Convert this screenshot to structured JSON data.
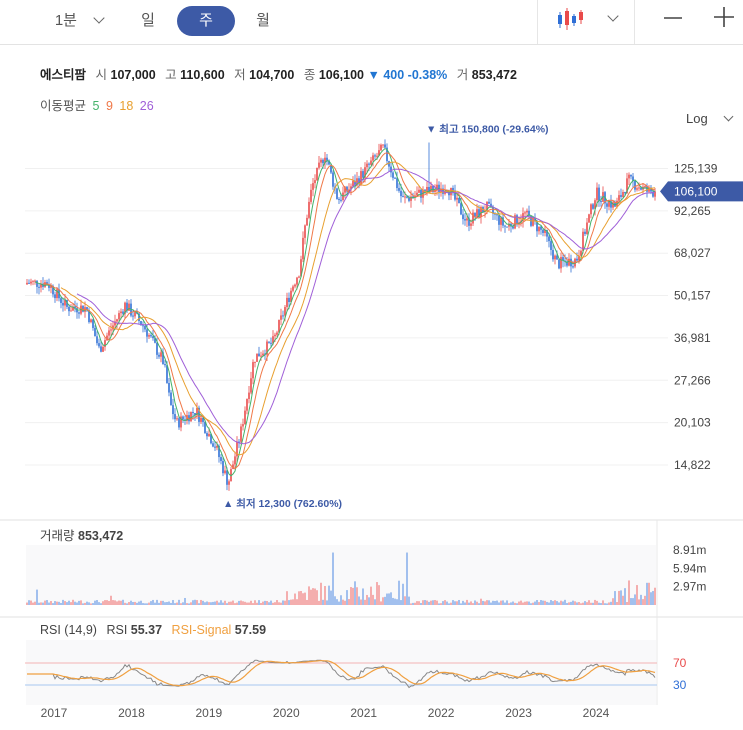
{
  "toolbar": {
    "timeframes": [
      "1분",
      "일",
      "주",
      "월"
    ],
    "active": "주"
  },
  "info": {
    "name": "에스티팜",
    "open_label": "시",
    "open": "107,000",
    "high_label": "고",
    "high": "110,600",
    "low_label": "저",
    "low": "104,700",
    "close_label": "종",
    "close": "106,100",
    "change": "▼ 400 -0.38%",
    "volume_label": "거",
    "volume": "853,472"
  },
  "ma_legend": {
    "label": "이동평균",
    "periods": [
      "5",
      "9",
      "18",
      "26"
    ],
    "colors": [
      "#44b26a",
      "#f07848",
      "#e8a030",
      "#a060d8"
    ]
  },
  "scale": {
    "label": "Log"
  },
  "colors": {
    "up": "#e94a4a",
    "down": "#2f6fd6",
    "badge": "#3d5aa6",
    "ma5": "#44b26a",
    "ma9": "#f07848",
    "ma18": "#e8a030",
    "ma26": "#a060d8",
    "rsi": "#888888",
    "rsi_signal": "#f0a040"
  },
  "chart_data": {
    "type": "candlestick",
    "scale": "log",
    "x_labels": [
      "2017",
      "2018",
      "2019",
      "2020",
      "2021",
      "2022",
      "2023",
      "2024"
    ],
    "y_ticks": [
      {
        "value": 125139,
        "label": "125,139"
      },
      {
        "value": 92265,
        "label": "92,265"
      },
      {
        "value": 68027,
        "label": "68,027"
      },
      {
        "value": 50157,
        "label": "50,157"
      },
      {
        "value": 36981,
        "label": "36,981"
      },
      {
        "value": 27266,
        "label": "27,266"
      },
      {
        "value": 20103,
        "label": "20,103"
      },
      {
        "value": 14822,
        "label": "14,822"
      }
    ],
    "last_price": {
      "value": 106100,
      "label": "106,100"
    },
    "high_annotation": {
      "value": 150800,
      "text": "▼ 최고 150,800 (-29.64%)"
    },
    "low_annotation": {
      "value": 12300,
      "text": "▲ 최저 12,300 (762.60%)"
    },
    "price_path": [
      [
        "2016-12",
        55000
      ],
      [
        "2017-03",
        46000
      ],
      [
        "2017-06",
        46000
      ],
      [
        "2017-08",
        34000
      ],
      [
        "2017-12",
        47000
      ],
      [
        "2018-03",
        40000
      ],
      [
        "2018-06",
        31000
      ],
      [
        "2018-07",
        23000
      ],
      [
        "2018-08",
        20000
      ],
      [
        "2018-11",
        22000
      ],
      [
        "2019-02",
        17000
      ],
      [
        "2019-04",
        13000
      ],
      [
        "2019-06",
        19000
      ],
      [
        "2019-08",
        32000
      ],
      [
        "2019-11",
        36000
      ],
      [
        "2020-02",
        54000
      ],
      [
        "2020-03",
        60000
      ],
      [
        "2020-04",
        85000
      ],
      [
        "2020-05",
        110000
      ],
      [
        "2020-07",
        140000
      ],
      [
        "2020-09",
        100000
      ],
      [
        "2020-12",
        115000
      ],
      [
        "2021-04",
        145000
      ],
      [
        "2021-07",
        100000
      ],
      [
        "2021-10",
        105000
      ],
      [
        "2022-02",
        110000
      ],
      [
        "2022-05",
        85000
      ],
      [
        "2022-08",
        95000
      ],
      [
        "2022-11",
        82000
      ],
      [
        "2023-02",
        90000
      ],
      [
        "2023-05",
        78000
      ],
      [
        "2023-07",
        63000
      ],
      [
        "2023-10",
        65000
      ],
      [
        "2024-01",
        105000
      ],
      [
        "2024-04",
        95000
      ],
      [
        "2024-06",
        115000
      ],
      [
        "2024-09",
        106100
      ]
    ],
    "volume": {
      "title": "거래량",
      "last": "853,472",
      "y_ticks": [
        {
          "value": 8.91,
          "label": "8.91m"
        },
        {
          "value": 5.94,
          "label": "5.94m"
        },
        {
          "value": 2.97,
          "label": "2.97m"
        }
      ]
    },
    "rsi": {
      "title": "RSI (14,9)",
      "rsi_label": "RSI",
      "rsi_value": "55.37",
      "signal_label": "RSI-Signal",
      "signal_value": "57.59",
      "levels": [
        {
          "value": 70,
          "label": "70"
        },
        {
          "value": 30,
          "label": "30"
        }
      ]
    }
  }
}
